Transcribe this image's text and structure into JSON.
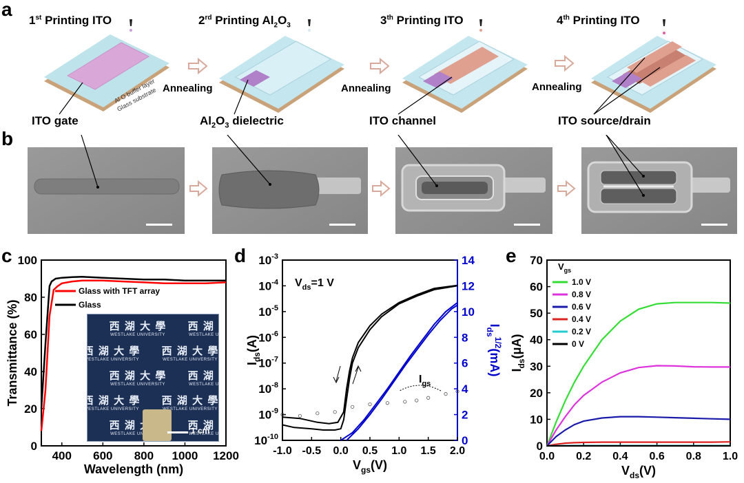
{
  "panel_a": {
    "letter": "a",
    "steps": [
      {
        "title_pre": "1",
        "title_sup": "st",
        "title_post": " Printing ITO"
      },
      {
        "title_pre": "2",
        "title_sup": "rd",
        "title_post": " Printing Al",
        "sub1": "2",
        "mid": "O",
        "sub2": "3"
      },
      {
        "title_pre": "3",
        "title_sup": "th",
        "title_post": " Printing ITO"
      },
      {
        "title_pre": "4",
        "title_sup": "th",
        "title_post": " Printing ITO"
      }
    ],
    "annealing": "Annealing",
    "substrate_labels": {
      "buffer": "Al O  buffer layer",
      "glass": "Glass substrate"
    },
    "callouts": {
      "gate": "ITO gate",
      "dielectric_pre": "Al",
      "dielectric_sub1": "2",
      "dielectric_mid": "O",
      "dielectric_sub2": "3",
      "dielectric_post": " dielectric",
      "channel": "ITO channel",
      "source_drain": "ITO source/drain"
    }
  },
  "panel_b": {
    "letter": "b"
  },
  "panel_c": {
    "letter": "c",
    "inset_scale": "1 cm",
    "inset_text_cn": "西 湖 大 學",
    "inset_text_en": "WESTLAKE UNIVERSITY"
  },
  "panel_d": {
    "letter": "d",
    "annotation_pre": "V",
    "annotation_sub": "ds",
    "annotation_post": "=1 V",
    "igs_pre": "I",
    "igs_sub": "gs"
  },
  "panel_e": {
    "letter": "e",
    "legend_title_pre": "V",
    "legend_title_sub": "gs"
  },
  "chart_data": [
    {
      "type": "line",
      "panel": "c",
      "xlabel": "Wavelength (nm)",
      "ylabel": "Transmittance (%)",
      "xlim": [
        300,
        1200
      ],
      "ylim": [
        0,
        100
      ],
      "xticks": [
        400,
        600,
        800,
        1000,
        1200
      ],
      "yticks": [
        0,
        20,
        40,
        60,
        80,
        100
      ],
      "legend_placement": "top-left",
      "series": [
        {
          "name": "Glass with TFT array",
          "color": "#ff0000",
          "x": [
            300,
            320,
            340,
            360,
            380,
            400,
            450,
            500,
            600,
            700,
            800,
            900,
            1000,
            1100,
            1200
          ],
          "y": [
            8,
            30,
            70,
            84,
            86,
            87.5,
            88.5,
            89,
            89,
            88.5,
            88,
            87.5,
            87.5,
            87.5,
            88
          ]
        },
        {
          "name": "Glass",
          "color": "#000000",
          "x": [
            300,
            320,
            340,
            350,
            370,
            400,
            450,
            500,
            600,
            700,
            800,
            900,
            1000,
            1100,
            1200
          ],
          "y": [
            20,
            55,
            86,
            88.5,
            90,
            90.5,
            90.8,
            91,
            90.5,
            90,
            89.5,
            89.5,
            89,
            89,
            89
          ]
        }
      ]
    },
    {
      "type": "line",
      "panel": "d",
      "xlabel": "V",
      "xlabel_sub": "gs",
      "xlabel_unit": "(V)",
      "ylabel_left": "I",
      "ylabel_left_sub": "ds",
      "ylabel_left_unit": "(A)",
      "ylabel_right": "I",
      "ylabel_right_sub": "ds",
      "ylabel_right_sup": "1/2",
      "ylabel_right_unit": "(mA)",
      "xlim": [
        -1.0,
        2.0
      ],
      "xticks": [
        "-1.0",
        "-0.5",
        "0.0",
        "0.5",
        "1.0",
        "1.5",
        "2.0"
      ],
      "ylim_left_log_exp": [
        -10,
        -3
      ],
      "yticks_left_exp": [
        -10,
        -9,
        -8,
        -7,
        -6,
        -5,
        -4,
        -3
      ],
      "ylim_right": [
        0,
        14
      ],
      "yticks_right": [
        0,
        2,
        4,
        6,
        8,
        10,
        12,
        14
      ],
      "series": [
        {
          "color": "#000000",
          "axis": "left-log",
          "x": [
            -1.0,
            -0.8,
            -0.5,
            -0.3,
            -0.1,
            0.0,
            0.05,
            0.1,
            0.15,
            0.2,
            0.3,
            0.5,
            0.7,
            1.0,
            1.3,
            1.6,
            2.0
          ],
          "y_exp": [
            -9.4,
            -9.5,
            -9.55,
            -9.6,
            -9.6,
            -9.55,
            -9.2,
            -8.4,
            -7.6,
            -7.0,
            -6.4,
            -5.7,
            -5.2,
            -4.7,
            -4.4,
            -4.15,
            -4.0
          ]
        },
        {
          "color": "#000000",
          "axis": "left-log",
          "x": [
            -1.0,
            -0.7,
            -0.4,
            -0.2,
            -0.05,
            0.05,
            0.1,
            0.15,
            0.2,
            0.3,
            0.5,
            0.7,
            1.0,
            1.3,
            1.6,
            2.0
          ],
          "y_exp": [
            -9.1,
            -9.15,
            -9.3,
            -9.35,
            -9.3,
            -8.9,
            -8.0,
            -7.3,
            -6.8,
            -6.2,
            -5.55,
            -5.1,
            -4.65,
            -4.35,
            -4.1,
            -3.98
          ]
        },
        {
          "color": "#0000cc",
          "axis": "right",
          "x": [
            0.0,
            0.2,
            0.4,
            0.6,
            0.8,
            1.0,
            1.2,
            1.4,
            1.6,
            1.8,
            2.0
          ],
          "y": [
            0,
            0.6,
            1.6,
            2.8,
            4.0,
            5.3,
            6.6,
            7.8,
            9.0,
            10.0,
            10.7
          ]
        },
        {
          "color": "#0000cc",
          "axis": "right",
          "x": [
            0.1,
            0.3,
            0.5,
            0.7,
            0.9,
            1.1,
            1.3,
            1.5,
            1.7,
            1.9,
            2.0
          ],
          "y": [
            0,
            0.9,
            2.0,
            3.2,
            4.5,
            5.8,
            7.0,
            8.2,
            9.3,
            10.2,
            10.5
          ]
        },
        {
          "color": "#555555",
          "axis": "left-log",
          "name": "Igs",
          "x": [
            -1.0,
            -0.7,
            -0.4,
            -0.1,
            0.2,
            0.5,
            0.8,
            1.1,
            1.3,
            1.5,
            1.8,
            2.0
          ],
          "y_exp": [
            -9.0,
            -9.05,
            -8.95,
            -8.9,
            -8.7,
            -8.6,
            -8.55,
            -8.5,
            -8.45,
            -8.35,
            -8.2,
            -8.1
          ]
        }
      ]
    },
    {
      "type": "line",
      "panel": "e",
      "xlabel": "V",
      "xlabel_sub": "ds",
      "xlabel_unit": "(V)",
      "ylabel": "I",
      "ylabel_sub": "ds",
      "ylabel_unit": "(μA)",
      "xlim": [
        0,
        1.0
      ],
      "ylim": [
        0,
        70
      ],
      "xticks": [
        "0.0",
        "0.2",
        "0.4",
        "0.6",
        "0.8",
        "1.0"
      ],
      "yticks": [
        0,
        10,
        20,
        30,
        40,
        50,
        60,
        70
      ],
      "legend_placement": "top-left",
      "x": [
        0,
        0.05,
        0.1,
        0.15,
        0.2,
        0.3,
        0.4,
        0.5,
        0.6,
        0.7,
        0.8,
        0.9,
        1.0
      ],
      "series": [
        {
          "name": "1.0 V",
          "color": "#33dd33",
          "values": [
            0,
            9,
            17,
            24,
            30,
            40,
            47,
            51.5,
            53.5,
            54,
            54,
            54,
            53.8
          ]
        },
        {
          "name": "0.8 V",
          "color": "#dd33dd",
          "values": [
            0,
            6,
            11,
            15.5,
            19,
            24,
            27.5,
            29.5,
            30.2,
            30.1,
            29.8,
            29.7,
            29.7
          ]
        },
        {
          "name": "0.6 V",
          "color": "#1a1aaa",
          "values": [
            0,
            3.5,
            6,
            8,
            9.3,
            10.5,
            11,
            11,
            10.8,
            10.6,
            10.4,
            10.2,
            10
          ]
        },
        {
          "name": "0.4 V",
          "color": "#dd2222",
          "values": [
            0,
            0.6,
            1,
            1.2,
            1.3,
            1.4,
            1.4,
            1.4,
            1.4,
            1.4,
            1.4,
            1.4,
            1.5
          ]
        },
        {
          "name": "0.2 V",
          "color": "#22cccc",
          "values": [
            0,
            0.05,
            0.08,
            0.1,
            0.1,
            0.1,
            0.1,
            0.1,
            0.1,
            0.1,
            0.1,
            0.1,
            0.1
          ]
        },
        {
          "name": "0 V",
          "color": "#000000",
          "values": [
            0,
            0,
            0,
            0,
            0,
            0,
            0,
            0,
            0,
            0,
            0,
            0,
            0
          ]
        }
      ]
    }
  ]
}
